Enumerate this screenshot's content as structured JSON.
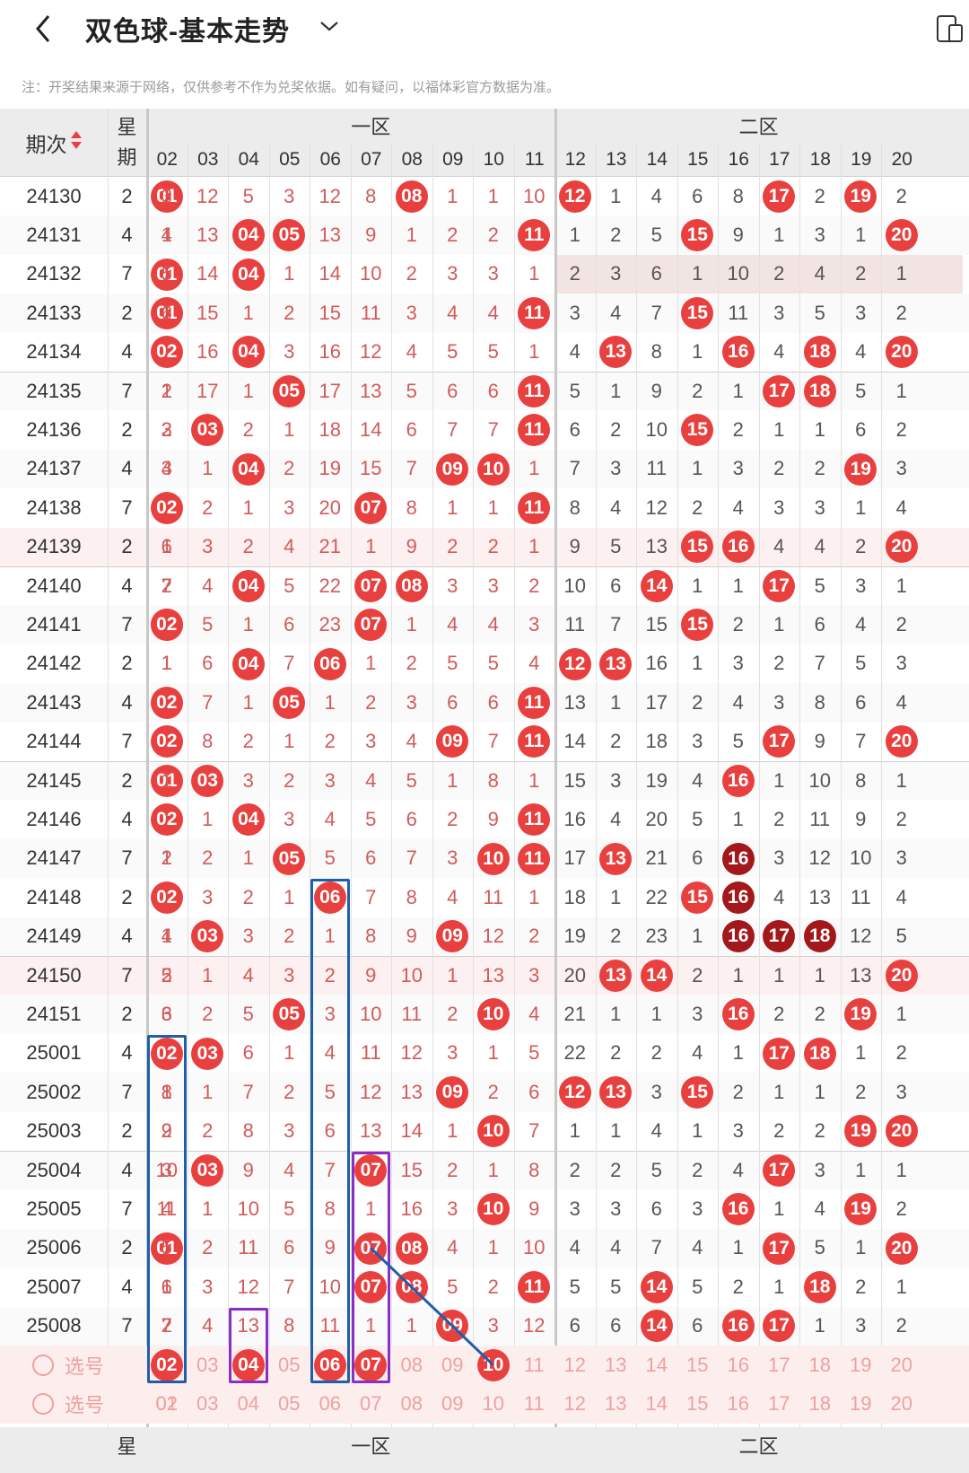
{
  "header": {
    "title": "双色球-基本走势",
    "back_icon": "chevron-left-icon",
    "dropdown_icon": "chevron-down-icon",
    "device_icon": "device-switch-icon"
  },
  "note": "注：开奖结果来源于网络，仅供参考不作为兑奖依据。如有疑问，以福体彩官方数据为准。",
  "table": {
    "period_header": "期次",
    "weekday_header": "星期",
    "zone1_label": "一区",
    "zone2_label": "二区",
    "zone1_numbers": [
      "01",
      "02",
      "03",
      "04",
      "05",
      "06",
      "07",
      "08",
      "09",
      "10",
      "11"
    ],
    "zone2_numbers": [
      "12",
      "13",
      "14",
      "15",
      "16",
      "17",
      "18",
      "19",
      "20"
    ],
    "rows": [
      {
        "period": "24130",
        "weekday": "2",
        "cells": [
          "01",
          "3",
          "12",
          "5",
          "3",
          "12",
          "8",
          "08",
          "1",
          "1",
          "10",
          "12",
          "1",
          "4",
          "6",
          "8",
          "17",
          "2",
          "19",
          "2"
        ]
      },
      {
        "period": "24131",
        "weekday": "4",
        "cells": [
          "1",
          "4",
          "13",
          "04",
          "05",
          "13",
          "9",
          "1",
          "2",
          "2",
          "11",
          "1",
          "2",
          "5",
          "15",
          "9",
          "1",
          "3",
          "1",
          "20"
        ]
      },
      {
        "period": "24132",
        "weekday": "7",
        "cells": [
          "01",
          "5",
          "14",
          "04",
          "1",
          "14",
          "10",
          "2",
          "3",
          "3",
          "1",
          "2",
          "3",
          "6",
          "1",
          "10",
          "2",
          "4",
          "2",
          "1"
        ]
      },
      {
        "period": "24133",
        "weekday": "2",
        "cells": [
          "01",
          "6",
          "15",
          "1",
          "2",
          "15",
          "11",
          "3",
          "4",
          "4",
          "11",
          "3",
          "4",
          "7",
          "15",
          "11",
          "3",
          "5",
          "3",
          "2"
        ]
      },
      {
        "period": "24134",
        "weekday": "4",
        "cells": [
          "1",
          "02",
          "16",
          "04",
          "3",
          "16",
          "12",
          "4",
          "5",
          "5",
          "1",
          "4",
          "13",
          "8",
          "1",
          "16",
          "4",
          "18",
          "4",
          "20"
        ]
      },
      {
        "period": "24135",
        "weekday": "7",
        "cells": [
          "2",
          "1",
          "17",
          "1",
          "05",
          "17",
          "13",
          "5",
          "6",
          "6",
          "11",
          "5",
          "1",
          "9",
          "2",
          "1",
          "17",
          "18",
          "5",
          "1"
        ]
      },
      {
        "period": "24136",
        "weekday": "2",
        "cells": [
          "3",
          "2",
          "03",
          "2",
          "1",
          "18",
          "14",
          "6",
          "7",
          "7",
          "11",
          "6",
          "2",
          "10",
          "15",
          "2",
          "1",
          "1",
          "6",
          "2"
        ]
      },
      {
        "period": "24137",
        "weekday": "4",
        "cells": [
          "4",
          "3",
          "1",
          "04",
          "2",
          "19",
          "15",
          "7",
          "09",
          "10",
          "1",
          "7",
          "3",
          "11",
          "1",
          "3",
          "2",
          "2",
          "19",
          "3"
        ]
      },
      {
        "period": "24138",
        "weekday": "7",
        "cells": [
          "5",
          "02",
          "2",
          "1",
          "3",
          "20",
          "07",
          "8",
          "1",
          "1",
          "11",
          "8",
          "4",
          "12",
          "2",
          "4",
          "3",
          "3",
          "1",
          "4"
        ]
      },
      {
        "period": "24139",
        "weekday": "2",
        "cells": [
          "6",
          "1",
          "3",
          "2",
          "4",
          "21",
          "1",
          "9",
          "2",
          "2",
          "1",
          "9",
          "5",
          "13",
          "15",
          "16",
          "4",
          "4",
          "2",
          "20"
        ]
      },
      {
        "period": "24140",
        "weekday": "4",
        "cells": [
          "7",
          "2",
          "4",
          "04",
          "5",
          "22",
          "07",
          "08",
          "3",
          "3",
          "2",
          "10",
          "6",
          "14",
          "1",
          "1",
          "17",
          "5",
          "3",
          "1"
        ]
      },
      {
        "period": "24141",
        "weekday": "7",
        "cells": [
          "01",
          "02",
          "5",
          "1",
          "6",
          "23",
          "07",
          "1",
          "4",
          "4",
          "3",
          "11",
          "7",
          "15",
          "15",
          "2",
          "1",
          "6",
          "4",
          "2"
        ]
      },
      {
        "period": "24142",
        "weekday": "2",
        "cells": [
          "1",
          "1",
          "6",
          "04",
          "7",
          "06",
          "1",
          "2",
          "5",
          "5",
          "4",
          "12",
          "13",
          "16",
          "1",
          "3",
          "2",
          "7",
          "5",
          "3"
        ]
      },
      {
        "period": "24143",
        "weekday": "4",
        "cells": [
          "2",
          "02",
          "7",
          "1",
          "05",
          "1",
          "2",
          "3",
          "6",
          "6",
          "11",
          "13",
          "1",
          "17",
          "2",
          "4",
          "3",
          "8",
          "6",
          "4"
        ]
      },
      {
        "period": "24144",
        "weekday": "7",
        "cells": [
          "3",
          "02",
          "8",
          "2",
          "1",
          "2",
          "3",
          "4",
          "09",
          "7",
          "11",
          "14",
          "2",
          "18",
          "3",
          "5",
          "17",
          "9",
          "7",
          "20"
        ]
      },
      {
        "period": "24145",
        "weekday": "2",
        "cells": [
          "01",
          "1",
          "03",
          "3",
          "2",
          "3",
          "4",
          "5",
          "1",
          "8",
          "1",
          "15",
          "3",
          "19",
          "4",
          "16",
          "1",
          "10",
          "8",
          "1"
        ]
      },
      {
        "period": "24146",
        "weekday": "4",
        "cells": [
          "1",
          "02",
          "1",
          "04",
          "3",
          "4",
          "5",
          "6",
          "2",
          "9",
          "11",
          "16",
          "4",
          "20",
          "5",
          "1",
          "2",
          "11",
          "9",
          "2"
        ]
      },
      {
        "period": "24147",
        "weekday": "7",
        "cells": [
          "2",
          "1",
          "2",
          "1",
          "05",
          "5",
          "6",
          "7",
          "3",
          "10",
          "11",
          "17",
          "13",
          "21",
          "6",
          "16",
          "3",
          "12",
          "10",
          "3"
        ]
      },
      {
        "period": "24148",
        "weekday": "2",
        "cells": [
          "3",
          "02",
          "3",
          "2",
          "1",
          "06",
          "7",
          "8",
          "4",
          "11",
          "1",
          "18",
          "1",
          "22",
          "15",
          "16",
          "4",
          "13",
          "11",
          "4"
        ]
      },
      {
        "period": "24149",
        "weekday": "4",
        "cells": [
          "4",
          "1",
          "03",
          "3",
          "2",
          "1",
          "8",
          "9",
          "09",
          "12",
          "2",
          "19",
          "2",
          "23",
          "1",
          "16",
          "17",
          "18",
          "12",
          "5"
        ]
      },
      {
        "period": "24150",
        "weekday": "7",
        "cells": [
          "5",
          "2",
          "1",
          "4",
          "3",
          "2",
          "9",
          "10",
          "1",
          "13",
          "3",
          "20",
          "13",
          "14",
          "2",
          "1",
          "1",
          "1",
          "13",
          "20"
        ]
      },
      {
        "period": "24151",
        "weekday": "2",
        "cells": [
          "6",
          "3",
          "2",
          "5",
          "05",
          "3",
          "10",
          "11",
          "2",
          "10",
          "4",
          "21",
          "1",
          "1",
          "3",
          "16",
          "2",
          "2",
          "19",
          "1"
        ]
      },
      {
        "period": "25001",
        "weekday": "4",
        "cells": [
          "7",
          "02",
          "03",
          "6",
          "1",
          "4",
          "11",
          "12",
          "3",
          "1",
          "5",
          "22",
          "2",
          "2",
          "4",
          "1",
          "17",
          "18",
          "1",
          "2"
        ]
      },
      {
        "period": "25002",
        "weekday": "7",
        "cells": [
          "8",
          "1",
          "1",
          "7",
          "2",
          "5",
          "12",
          "13",
          "09",
          "2",
          "6",
          "12",
          "13",
          "3",
          "15",
          "2",
          "1",
          "1",
          "2",
          "3"
        ]
      },
      {
        "period": "25003",
        "weekday": "2",
        "cells": [
          "9",
          "2",
          "2",
          "8",
          "3",
          "6",
          "13",
          "14",
          "1",
          "10",
          "7",
          "1",
          "1",
          "4",
          "1",
          "3",
          "2",
          "2",
          "19",
          "20"
        ]
      },
      {
        "period": "25004",
        "weekday": "4",
        "cells": [
          "10",
          "3",
          "03",
          "9",
          "4",
          "7",
          "07",
          "15",
          "2",
          "1",
          "8",
          "2",
          "2",
          "5",
          "2",
          "4",
          "17",
          "3",
          "1",
          "1"
        ]
      },
      {
        "period": "25005",
        "weekday": "7",
        "cells": [
          "11",
          "4",
          "1",
          "10",
          "5",
          "8",
          "1",
          "16",
          "3",
          "10",
          "9",
          "3",
          "3",
          "6",
          "3",
          "16",
          "1",
          "4",
          "19",
          "2"
        ]
      },
      {
        "period": "25006",
        "weekday": "2",
        "cells": [
          "01",
          "5",
          "2",
          "11",
          "6",
          "9",
          "07",
          "08",
          "4",
          "1",
          "10",
          "4",
          "4",
          "7",
          "4",
          "1",
          "17",
          "5",
          "1",
          "20"
        ]
      },
      {
        "period": "25007",
        "weekday": "4",
        "cells": [
          "1",
          "6",
          "3",
          "12",
          "7",
          "10",
          "07",
          "08",
          "5",
          "2",
          "11",
          "5",
          "5",
          "14",
          "5",
          "2",
          "1",
          "18",
          "2",
          "1"
        ]
      },
      {
        "period": "25008",
        "weekday": "7",
        "cells": [
          "2",
          "7",
          "4",
          "13",
          "8",
          "11",
          "1",
          "1",
          "09",
          "3",
          "12",
          "6",
          "6",
          "14",
          "6",
          "16",
          "17",
          "1",
          "3",
          "2"
        ]
      }
    ],
    "pick_label": "选号",
    "pick_row_1": [
      "01",
      "02",
      "03",
      "04",
      "05",
      "06",
      "07",
      "08",
      "09",
      "10",
      "11",
      "12",
      "13",
      "14",
      "15",
      "16",
      "17",
      "18",
      "19",
      "20"
    ],
    "pick_row_1_selected": [
      "02",
      "04",
      "06",
      "07",
      "10"
    ],
    "pick_row_2": [
      "01",
      "02",
      "03",
      "04",
      "05",
      "06",
      "07",
      "08",
      "09",
      "10",
      "11",
      "12",
      "13",
      "14",
      "15",
      "16",
      "17",
      "18",
      "19",
      "20"
    ],
    "dark_balls": [
      [
        17,
        15
      ],
      [
        18,
        15
      ],
      [
        19,
        15
      ],
      [
        19,
        16
      ],
      [
        19,
        17
      ]
    ]
  },
  "colors": {
    "ball_red": "#e8403f",
    "ball_dark": "#a3181a",
    "box_blue": "#1f5fa8",
    "box_purple": "#8a2fc2",
    "line_blue": "#1f5fa8",
    "pick_text": "#f0a0a0"
  }
}
